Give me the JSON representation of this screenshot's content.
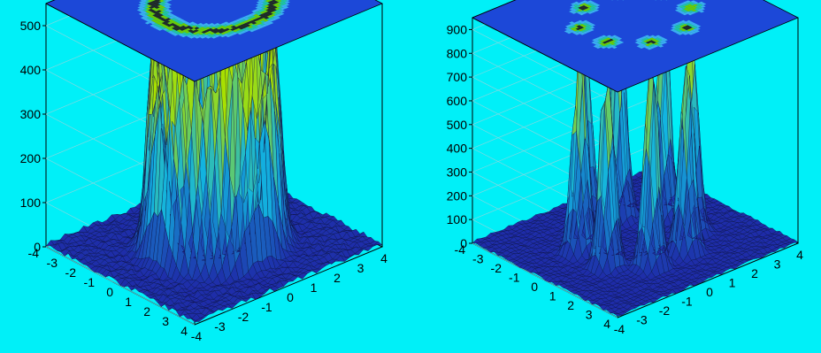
{
  "background_color": "#00f0f8",
  "chart_data": [
    {
      "type": "surface",
      "shape": "ring",
      "title": "",
      "xlabel": "",
      "ylabel": "",
      "zlabel": "",
      "x_range": [
        -4,
        4
      ],
      "y_range": [
        -4,
        4
      ],
      "z_range": [
        0,
        550
      ],
      "ring_radius": 2.0,
      "ring_width": 0.35,
      "peak_height": 480,
      "z_ticks": [
        "0",
        "100",
        "200",
        "300",
        "400",
        "500"
      ],
      "x_ticks": [
        "-4",
        "-3",
        "-2",
        "-1",
        "0",
        "1",
        "2",
        "3",
        "4"
      ],
      "y_ticks": [
        "-4",
        "-3",
        "-2",
        "-1",
        "0",
        "1",
        "2",
        "3",
        "4"
      ],
      "projection": "contour-plane-on-top",
      "colors": {
        "low": "#1e2aa8",
        "mid": "#12b4e0",
        "high": "#a8e000"
      }
    },
    {
      "type": "surface",
      "shape": "eight-peaks",
      "title": "",
      "xlabel": "",
      "ylabel": "",
      "zlabel": "",
      "x_range": [
        -4,
        4
      ],
      "y_range": [
        -4,
        4
      ],
      "z_range": [
        0,
        950
      ],
      "ring_radius": 2.0,
      "peak_count": 8,
      "peak_width": 0.35,
      "peak_height": 880,
      "z_ticks": [
        "0",
        "100",
        "200",
        "300",
        "400",
        "500",
        "600",
        "700",
        "800",
        "900"
      ],
      "x_ticks": [
        "-4",
        "-3",
        "-2",
        "-1",
        "0",
        "1",
        "2",
        "3",
        "4"
      ],
      "y_ticks": [
        "-4",
        "-3",
        "-2",
        "-1",
        "0",
        "1",
        "2",
        "3",
        "4"
      ],
      "projection": "contour-plane-on-top",
      "colors": {
        "low": "#1e2aa8",
        "mid": "#12b4e0",
        "high": "#a8e000"
      }
    }
  ]
}
